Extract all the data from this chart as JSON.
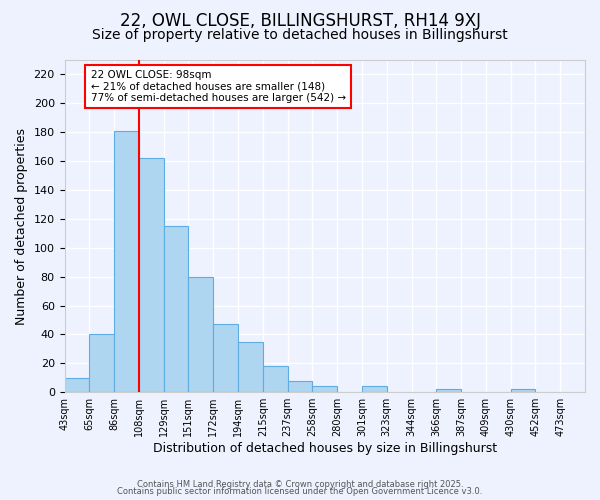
{
  "title": "22, OWL CLOSE, BILLINGSHURST, RH14 9XJ",
  "subtitle": "Size of property relative to detached houses in Billingshurst",
  "xlabel": "Distribution of detached houses by size in Billingshurst",
  "ylabel": "Number of detached properties",
  "bar_values": [
    10,
    40,
    181,
    162,
    115,
    80,
    47,
    35,
    18,
    8,
    4,
    0,
    4,
    0,
    0,
    2,
    0,
    0,
    2,
    0,
    0
  ],
  "bar_labels": [
    "43sqm",
    "65sqm",
    "86sqm",
    "108sqm",
    "129sqm",
    "151sqm",
    "172sqm",
    "194sqm",
    "215sqm",
    "237sqm",
    "258sqm",
    "280sqm",
    "301sqm",
    "323sqm",
    "344sqm",
    "366sqm",
    "387sqm",
    "409sqm",
    "430sqm",
    "452sqm",
    "473sqm"
  ],
  "bar_color": "#AED6F1",
  "bar_edge_color": "#5DADE2",
  "red_line_x": 2.5,
  "ylim": [
    0,
    230
  ],
  "yticks": [
    0,
    20,
    40,
    60,
    80,
    100,
    120,
    140,
    160,
    180,
    200,
    220
  ],
  "annotation_title": "22 OWL CLOSE: 98sqm",
  "annotation_line1": "← 21% of detached houses are smaller (148)",
  "annotation_line2": "77% of semi-detached houses are larger (542) →",
  "footer1": "Contains HM Land Registry data © Crown copyright and database right 2025.",
  "footer2": "Contains public sector information licensed under the Open Government Licence v3.0.",
  "background_color": "#EEF2FF",
  "grid_color": "#FFFFFF",
  "title_fontsize": 12,
  "subtitle_fontsize": 10
}
